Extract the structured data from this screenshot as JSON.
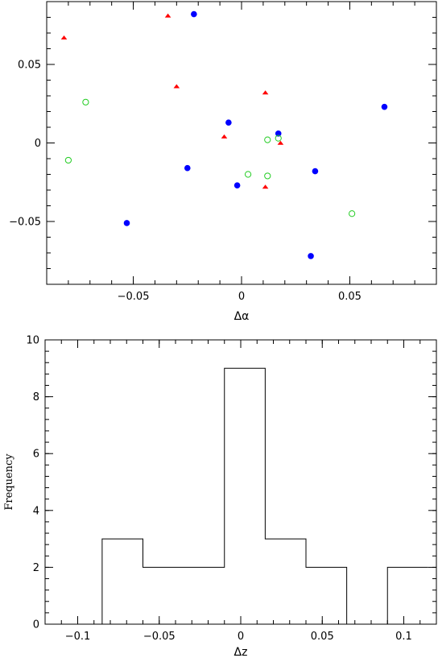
{
  "chart_data": [
    {
      "type": "scatter",
      "xlabel": "Δα",
      "ylabel": "",
      "xlim": [
        -0.09,
        0.09
      ],
      "ylim": [
        -0.09,
        0.09
      ],
      "xticks": [
        -0.05,
        0,
        0.05
      ],
      "xtick_labels": [
        "−0.05",
        "0",
        "0.05"
      ],
      "yticks": [
        -0.05,
        0,
        0.05
      ],
      "ytick_labels": [
        "−0.05",
        "0",
        "0.05"
      ],
      "grid": false,
      "series": [
        {
          "marker": "filled-circle",
          "color": "#0000ff",
          "points": [
            [
              -0.022,
              0.082
            ],
            [
              -0.006,
              0.013
            ],
            [
              -0.025,
              -0.016
            ],
            [
              -0.002,
              -0.027
            ],
            [
              -0.053,
              -0.051
            ],
            [
              0.017,
              0.006
            ],
            [
              0.034,
              -0.018
            ],
            [
              0.032,
              -0.072
            ],
            [
              0.066,
              0.023
            ]
          ]
        },
        {
          "marker": "filled-triangle",
          "color": "#ff0000",
          "points": [
            [
              -0.034,
              0.081
            ],
            [
              -0.082,
              0.067
            ],
            [
              -0.03,
              0.036
            ],
            [
              0.011,
              0.032
            ],
            [
              -0.008,
              0.004
            ],
            [
              0.018,
              0.0
            ],
            [
              0.011,
              -0.028
            ]
          ]
        },
        {
          "marker": "open-circle",
          "color": "#22cc22",
          "points": [
            [
              -0.072,
              0.026
            ],
            [
              -0.08,
              -0.011
            ],
            [
              0.012,
              0.002
            ],
            [
              0.017,
              0.003
            ],
            [
              0.003,
              -0.02
            ],
            [
              0.012,
              -0.021
            ],
            [
              0.051,
              -0.045
            ]
          ]
        }
      ]
    },
    {
      "type": "bar",
      "histogram": true,
      "xlabel": "Δz",
      "ylabel": "Frequency",
      "xlim": [
        -0.12,
        0.12
      ],
      "ylim": [
        0,
        10
      ],
      "xticks": [
        -0.1,
        -0.05,
        0,
        0.05,
        0.1
      ],
      "xtick_labels": [
        "−0.1",
        "−0.05",
        "0",
        "0.05",
        "0.1"
      ],
      "yticks": [
        0,
        2,
        4,
        6,
        8,
        10
      ],
      "ytick_labels": [
        "0",
        "2",
        "4",
        "6",
        "8",
        "10"
      ],
      "bin_edges": [
        -0.11,
        -0.085,
        -0.06,
        -0.035,
        -0.01,
        0.015,
        0.04,
        0.065,
        0.09,
        0.115
      ],
      "values": [
        0,
        3,
        2,
        2,
        9,
        3,
        2,
        0,
        2
      ],
      "color": "#000000"
    }
  ]
}
